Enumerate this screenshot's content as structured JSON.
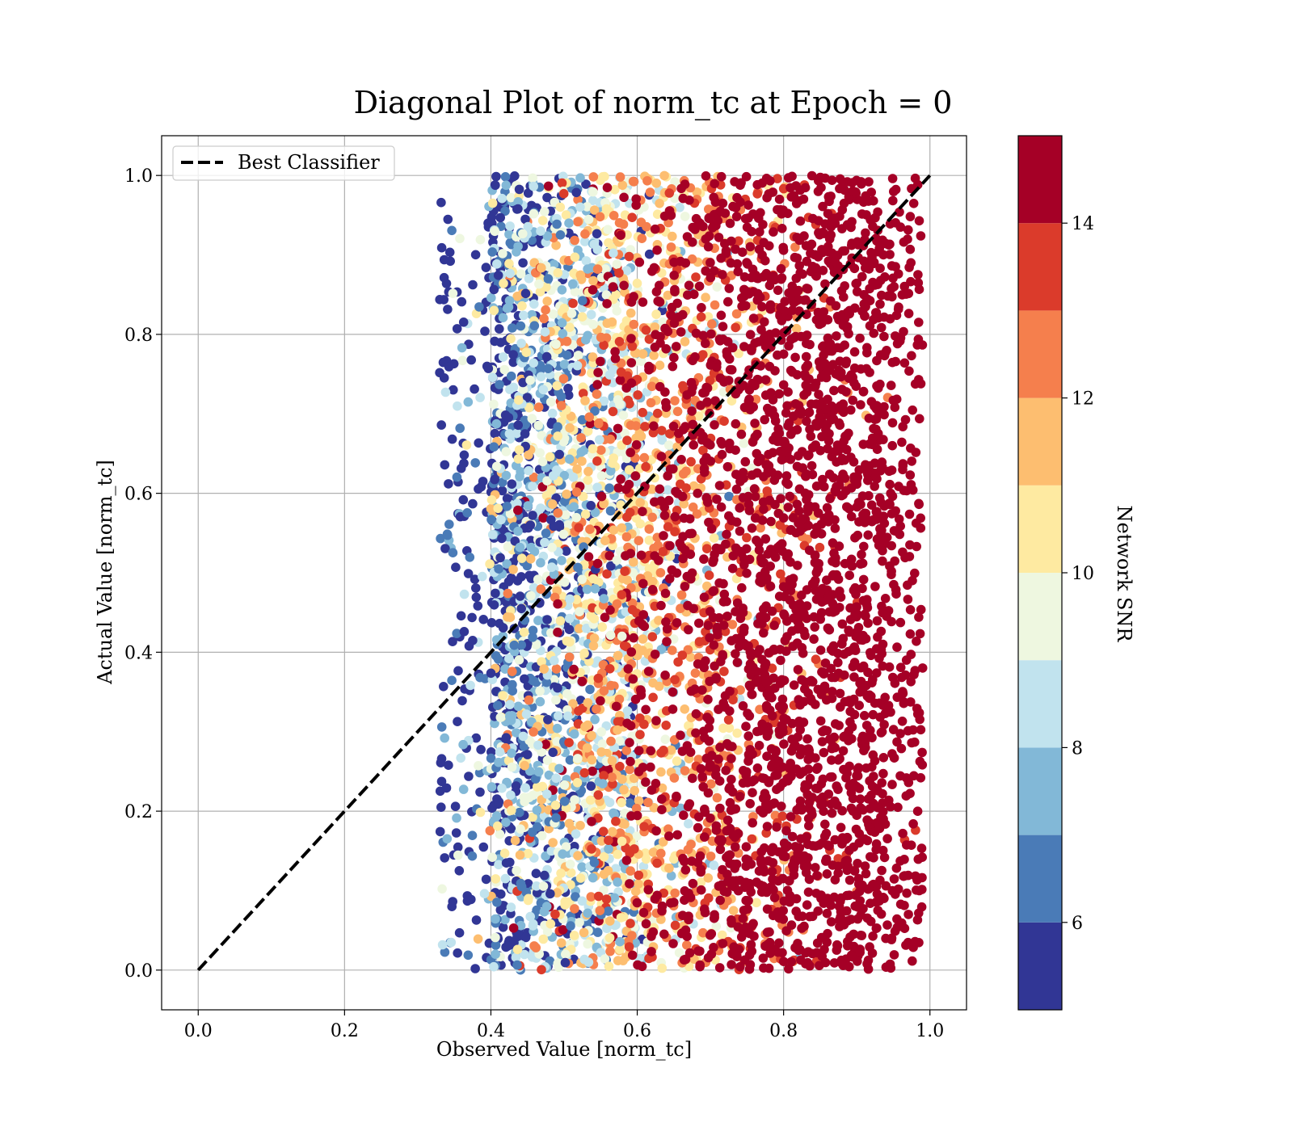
{
  "chart_data": {
    "type": "scatter",
    "title": "Diagonal Plot of norm_tc at Epoch = 0",
    "xlabel": "Observed Value [norm_tc]",
    "ylabel": "Actual Value [norm_tc]",
    "xlim": [
      -0.05,
      1.05
    ],
    "ylim": [
      -0.05,
      1.05
    ],
    "xticks": [
      "0.0",
      "0.2",
      "0.4",
      "0.6",
      "0.8",
      "1.0"
    ],
    "xtick_values": [
      0.0,
      0.2,
      0.4,
      0.6,
      0.8,
      1.0
    ],
    "yticks": [
      "0.0",
      "0.2",
      "0.4",
      "0.6",
      "0.8",
      "1.0"
    ],
    "ytick_values": [
      0.0,
      0.2,
      0.4,
      0.6,
      0.8,
      1.0
    ],
    "grid": true,
    "legend": {
      "placement": "upper-left",
      "entries": [
        {
          "label": "Best Classifier",
          "style": "dashed",
          "color": "#000000"
        }
      ]
    },
    "reference_line": {
      "label": "Best Classifier",
      "x": [
        0.0,
        1.0
      ],
      "y": [
        0.0,
        1.0
      ]
    },
    "scatter_region": {
      "x_min": 0.33,
      "x_max": 0.99,
      "y_min": 0.0,
      "y_max": 1.0,
      "note_density": "dense points for x in 0.4-0.98, sparse tail down to x = 0.33"
    },
    "colorbar": {
      "label": "Network SNR",
      "range": [
        5,
        15
      ],
      "ticks": [
        "6",
        "8",
        "10",
        "12",
        "14"
      ],
      "tick_values": [
        6,
        8,
        10,
        12,
        14
      ],
      "levels": [
        5,
        6,
        7,
        8,
        9,
        10,
        11,
        12,
        13,
        14,
        15
      ],
      "colors": [
        "#313695",
        "#4575b4",
        "#74add1",
        "#abd9e9",
        "#e0f3f8",
        "#fee090",
        "#fdae61",
        "#f46d43",
        "#d73027",
        "#a50026"
      ],
      "palette_hex": [
        "#313695",
        "#4a7bb7",
        "#82b8d7",
        "#c1e3ee",
        "#eef7e0",
        "#feeaa1",
        "#fdbe70",
        "#f57f4d",
        "#db3b2b",
        "#a50026"
      ]
    }
  }
}
